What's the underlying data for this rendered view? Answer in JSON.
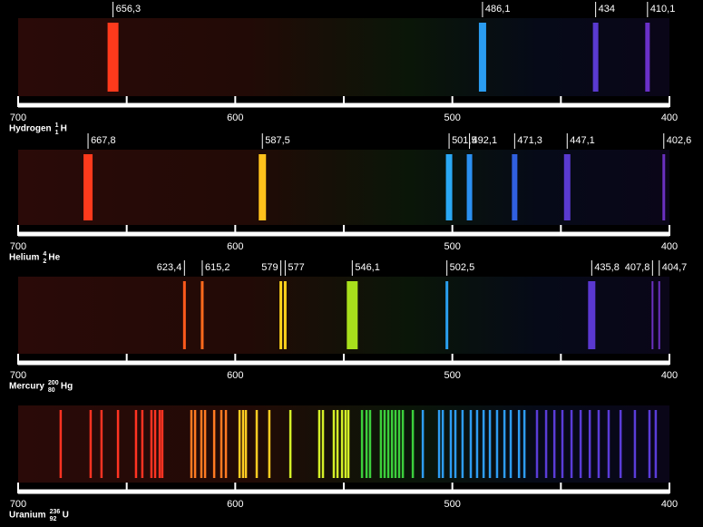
{
  "chart_data": [
    {
      "type": "spectrum",
      "element": "Hydrogen",
      "mass_number": 1,
      "atomic_number": 1,
      "symbol": "H",
      "xlim": [
        700,
        400
      ],
      "xticks": [
        700,
        600,
        500,
        400
      ],
      "minor_xticks": [
        650,
        550,
        450
      ],
      "series": [
        {
          "values": [
            656.3,
            486.1,
            434,
            410.1
          ],
          "value_labels": [
            "656,3",
            "486,1",
            "434",
            "410,1"
          ],
          "colors": [
            "#ff3a1c",
            "#2a9cf0",
            "#5a3ad0",
            "#6a30c8"
          ]
        }
      ]
    },
    {
      "type": "spectrum",
      "element": "Helium",
      "mass_number": 4,
      "atomic_number": 2,
      "symbol": "He",
      "xlim": [
        700,
        400
      ],
      "xticks": [
        700,
        600,
        500,
        400
      ],
      "minor_xticks": [
        650,
        550,
        450
      ],
      "series": [
        {
          "values": [
            667.8,
            587.5,
            501.5,
            492.1,
            471.3,
            447.1,
            402.6
          ],
          "value_labels": [
            "667,8",
            "587,5",
            "501,5",
            "492,1",
            "471,3",
            "447,1",
            "402,6"
          ],
          "colors": [
            "#ff3a1c",
            "#ffc21c",
            "#2aa8f4",
            "#2a90f0",
            "#3060e0",
            "#5a3ad0",
            "#6a30c0"
          ]
        }
      ]
    },
    {
      "type": "spectrum",
      "element": "Mercury",
      "mass_number": 200,
      "atomic_number": 80,
      "symbol": "Hg",
      "xlim": [
        700,
        400
      ],
      "xticks": [
        700,
        600,
        500,
        400
      ],
      "minor_xticks": [
        650,
        550,
        450
      ],
      "series": [
        {
          "values": [
            623.4,
            615.2,
            579,
            577,
            546.1,
            502.5,
            435.8,
            407.8,
            404.7
          ],
          "value_labels": [
            "623,4",
            "615,2",
            "579",
            "577",
            "546,1",
            "502,5",
            "435,8",
            "407,8",
            "404,7"
          ],
          "colors": [
            "#ff5a1c",
            "#ff6a1c",
            "#ffd21c",
            "#ffd21c",
            "#a8e01c",
            "#2aa0f0",
            "#5a38d0",
            "#6a30c0",
            "#6a30c0"
          ]
        }
      ]
    },
    {
      "type": "spectrum",
      "element": "Uranium",
      "mass_number": 236,
      "atomic_number": 92,
      "symbol": "U",
      "xlim": [
        700,
        400
      ],
      "xticks": [
        700,
        600,
        500,
        400
      ],
      "minor_xticks": [
        650,
        550,
        450
      ],
      "series": [
        {
          "color": "#ff3322",
          "values": [
            680.4,
            666.6,
            661.6,
            654.0,
            645.7,
            642.8,
            638.6,
            636.9,
            634.8,
            633.6
          ]
        },
        {
          "color": "#ff7a22",
          "values": [
            620.2,
            618.5,
            615.6,
            613.9,
            609.7,
            606.4,
            604.3
          ]
        },
        {
          "color": "#ffcc22",
          "values": [
            598.0,
            596.4,
            595.1,
            590.1,
            584.3
          ]
        },
        {
          "color": "#d4f028",
          "values": [
            574.6,
            561.3,
            559.6,
            554.6,
            552.9,
            550.8,
            549.2,
            547.9
          ]
        },
        {
          "color": "#3ccf3c",
          "values": [
            541.6,
            539.5,
            537.9,
            532.9,
            531.2,
            529.5,
            527.8,
            526.2,
            524.5,
            522.8,
            518.2
          ]
        },
        {
          "color": "#2e9cf2",
          "values": [
            513.6,
            506.1,
            504.4,
            500.7,
            498.6,
            495.3,
            491.5,
            488.6,
            485.6,
            482.7,
            479.4,
            476.0,
            473.1,
            469.3,
            466.8
          ]
        },
        {
          "color": "#5a3cd8",
          "values": [
            461.0,
            456.8,
            453.0,
            449.3,
            445.1,
            440.9,
            436.7,
            432.6,
            428.0,
            422.5,
            415.9,
            409.2,
            406.3
          ]
        }
      ]
    }
  ]
}
